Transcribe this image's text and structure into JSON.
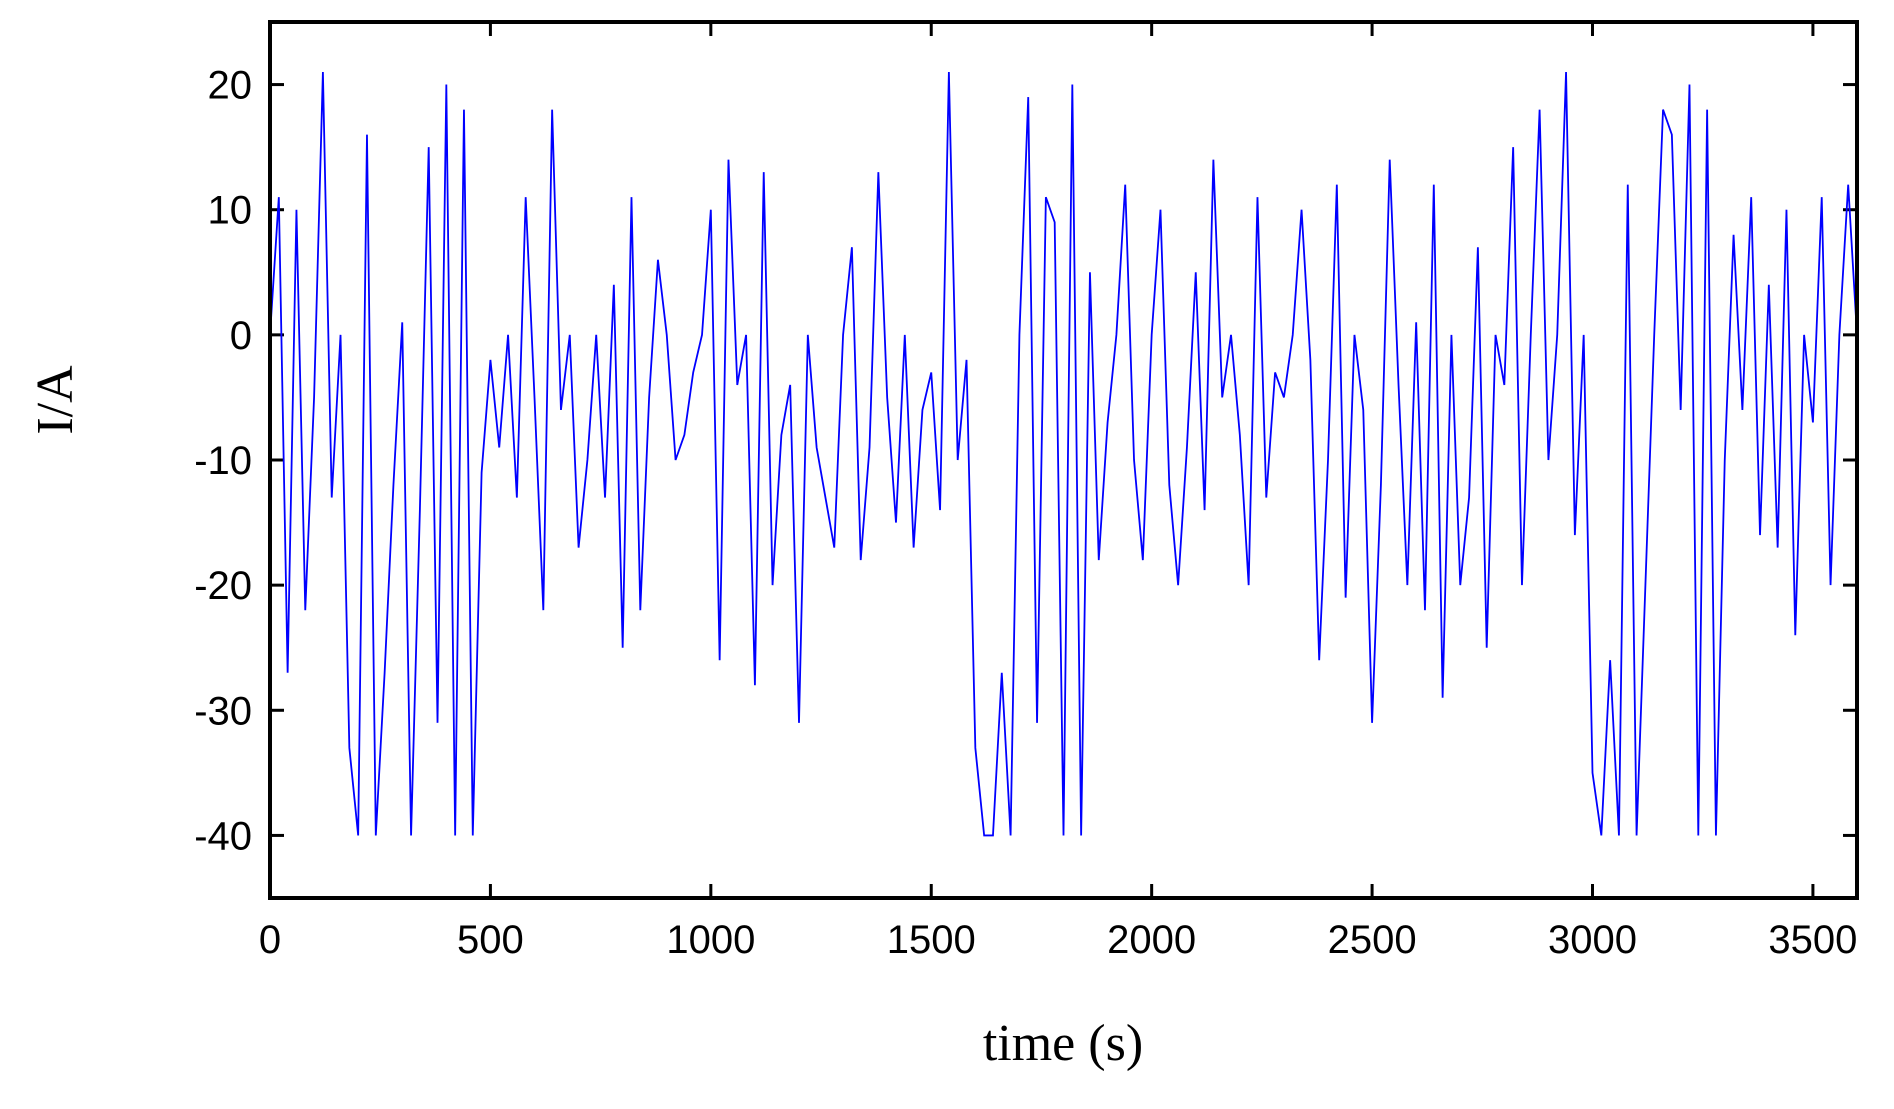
{
  "chart_data": {
    "type": "line",
    "xlabel": "time (s)",
    "ylabel": "I/A",
    "color": "#0000ff",
    "xlim": [
      0,
      3600
    ],
    "ylim": [
      -45,
      25
    ],
    "xticks": [
      0,
      500,
      1000,
      1500,
      2000,
      2500,
      3000,
      3500
    ],
    "yticks": [
      -40,
      -30,
      -20,
      -10,
      0,
      10,
      20
    ],
    "x": [
      0,
      20,
      40,
      60,
      80,
      100,
      120,
      140,
      160,
      180,
      200,
      220,
      240,
      260,
      280,
      300,
      320,
      340,
      360,
      380,
      400,
      420,
      440,
      460,
      480,
      500,
      520,
      540,
      560,
      580,
      600,
      620,
      640,
      660,
      680,
      700,
      720,
      740,
      760,
      780,
      800,
      820,
      840,
      860,
      880,
      900,
      920,
      940,
      960,
      980,
      1000,
      1020,
      1040,
      1060,
      1080,
      1100,
      1120,
      1140,
      1160,
      1180,
      1200,
      1220,
      1240,
      1260,
      1280,
      1300,
      1320,
      1340,
      1360,
      1380,
      1400,
      1420,
      1440,
      1460,
      1480,
      1500,
      1520,
      1540,
      1560,
      1580,
      1600,
      1620,
      1640,
      1660,
      1680,
      1700,
      1720,
      1740,
      1760,
      1780,
      1800,
      1820,
      1840,
      1860,
      1880,
      1900,
      1920,
      1940,
      1960,
      1980,
      2000,
      2020,
      2040,
      2060,
      2080,
      2100,
      2120,
      2140,
      2160,
      2180,
      2200,
      2220,
      2240,
      2260,
      2280,
      2300,
      2320,
      2340,
      2360,
      2380,
      2400,
      2420,
      2440,
      2460,
      2480,
      2500,
      2520,
      2540,
      2560,
      2580,
      2600,
      2620,
      2640,
      2660,
      2680,
      2700,
      2720,
      2740,
      2760,
      2780,
      2800,
      2820,
      2840,
      2860,
      2880,
      2900,
      2920,
      2940,
      2960,
      2980,
      3000,
      3020,
      3040,
      3060,
      3080,
      3100,
      3120,
      3140,
      3160,
      3180,
      3200,
      3220,
      3240,
      3260,
      3280,
      3300,
      3320,
      3340,
      3360,
      3380,
      3400,
      3420,
      3440,
      3460,
      3480,
      3500,
      3520,
      3540,
      3560,
      3580,
      3600
    ],
    "values": [
      0,
      11,
      -27,
      10,
      -22,
      -5,
      21,
      -13,
      0,
      -33,
      -40,
      16,
      -40,
      -27,
      -12,
      1,
      -40,
      -14,
      15,
      -31,
      20,
      -40,
      18,
      -40,
      -11,
      -2,
      -9,
      0,
      -13,
      11,
      -5,
      -22,
      18,
      -6,
      0,
      -17,
      -10,
      0,
      -13,
      4,
      -25,
      11,
      -22,
      -5,
      6,
      0,
      -10,
      -8,
      -3,
      0,
      10,
      -26,
      14,
      -4,
      0,
      -28,
      13,
      -20,
      -8,
      -4,
      -31,
      0,
      -9,
      -13,
      -17,
      0,
      7,
      -18,
      -9,
      13,
      -5,
      -15,
      0,
      -17,
      -6,
      -3,
      -14,
      21,
      -10,
      -2,
      -33,
      -40,
      -40,
      -27,
      -40,
      0,
      19,
      -31,
      11,
      9,
      -40,
      20,
      -40,
      5,
      -18,
      -7,
      0,
      12,
      -10,
      -18,
      0,
      10,
      -12,
      -20,
      -9,
      5,
      -14,
      14,
      -5,
      0,
      -8,
      -20,
      11,
      -13,
      -3,
      -5,
      0,
      10,
      -2,
      -26,
      -10,
      12,
      -21,
      0,
      -6,
      -31,
      -12,
      14,
      -4,
      -20,
      1,
      -22,
      12,
      -29,
      0,
      -20,
      -13,
      7,
      -25,
      0,
      -4,
      15,
      -20,
      0,
      18,
      -10,
      0,
      21,
      -16,
      0,
      -35,
      -40,
      -26,
      -40,
      12,
      -40,
      -20,
      0,
      18,
      16,
      -6,
      20,
      -40,
      18,
      -40,
      -10,
      8,
      -6,
      11,
      -16,
      4,
      -17,
      10,
      -24,
      0,
      -7,
      11,
      -20,
      0,
      12,
      0
    ]
  }
}
